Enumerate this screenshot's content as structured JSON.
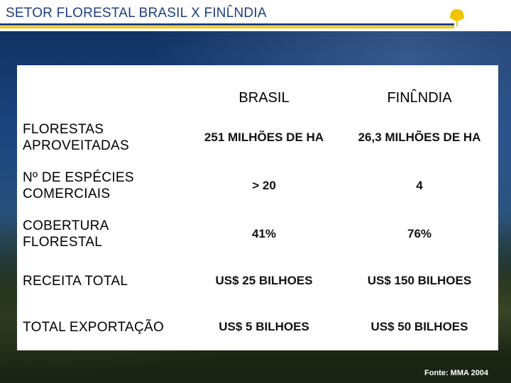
{
  "header": {
    "title": "SETOR FLORESTAL BRASIL X FINL̂NDIA",
    "logo_icon": "tree-logo-icon"
  },
  "table": {
    "columns": [
      "",
      "BRASIL",
      "FINL̂NDIA"
    ],
    "rows": [
      {
        "label": "FLORESTAS APROVEITADAS",
        "brasil": "251 MILHÕES DE HA",
        "finlandia": "26,3 MILHÕES DE HA"
      },
      {
        "label": "Nº DE ESPÉCIES COMERCIAIS",
        "brasil": "> 20",
        "finlandia": "4"
      },
      {
        "label": "COBERTURA FLORESTAL",
        "brasil": "41%",
        "finlandia": "76%"
      },
      {
        "label": "RECEITA TOTAL",
        "brasil": "US$ 25 BILHOES",
        "finlandia": "US$ 150 BILHOES"
      },
      {
        "label": "TOTAL EXPORTAÇÃO",
        "brasil": "US$ 5 BILHOES",
        "finlandia": "US$ 50 BILHOES"
      }
    ]
  },
  "footer": {
    "source": "Fonte: MMA 2004"
  },
  "colors": {
    "title_text": "#1f3f80",
    "accent_yellow": "#f0c400",
    "background": "#12305c"
  }
}
